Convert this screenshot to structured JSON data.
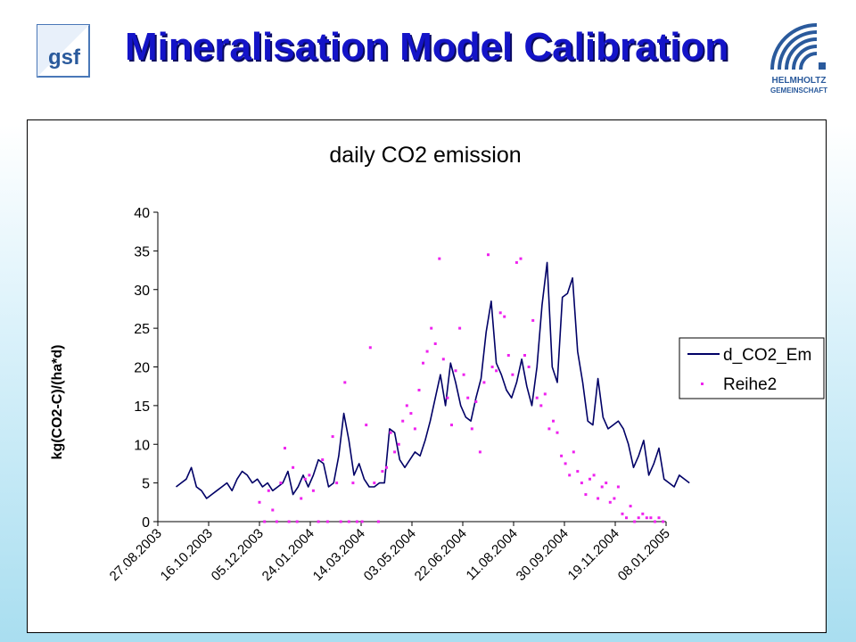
{
  "header": {
    "title": "Mineralisation Model Calibration",
    "logo_left_text": "gsf",
    "logo_right_line1": "HELMHOLTZ",
    "logo_right_line2": "GEMEINSCHAFT"
  },
  "colors": {
    "title": "#1414c8",
    "line_series": "#000066",
    "scatter_series": "#ee22ee",
    "logo_blue": "#2a5a9c"
  },
  "chart_data": {
    "type": "line",
    "title": "daily CO2 emission",
    "xlabel": "",
    "ylabel": "kg(CO2-C)/(ha*d)",
    "ylim": [
      0,
      40
    ],
    "yticks": [
      0,
      5,
      10,
      15,
      20,
      25,
      30,
      35,
      40
    ],
    "xlim": [
      "2003-08-27",
      "2005-01-08"
    ],
    "xticks": [
      "27.08.2003",
      "16.10.2003",
      "05.12.2003",
      "24.01.2004",
      "14.03.2004",
      "03.05.2004",
      "22.06.2004",
      "11.08.2004",
      "30.09.2004",
      "19.11.2004",
      "08.01.2005"
    ],
    "grid": false,
    "legend_position": "right",
    "series": [
      {
        "name": "d_CO2_Em",
        "style": "line",
        "x": [
          "2003-09-14",
          "2003-09-19",
          "2003-09-24",
          "2003-09-29",
          "2003-10-04",
          "2003-10-09",
          "2003-10-14",
          "2003-10-19",
          "2003-10-24",
          "2003-10-29",
          "2003-11-03",
          "2003-11-08",
          "2003-11-13",
          "2003-11-18",
          "2003-11-23",
          "2003-11-28",
          "2003-12-03",
          "2003-12-08",
          "2003-12-13",
          "2003-12-18",
          "2003-12-23",
          "2003-12-28",
          "2004-01-02",
          "2004-01-07",
          "2004-01-12",
          "2004-01-17",
          "2004-01-22",
          "2004-01-27",
          "2004-02-01",
          "2004-02-06",
          "2004-02-11",
          "2004-02-16",
          "2004-02-21",
          "2004-02-26",
          "2004-03-02",
          "2004-03-07",
          "2004-03-12",
          "2004-03-17",
          "2004-03-22",
          "2004-03-27",
          "2004-04-01",
          "2004-04-06",
          "2004-04-11",
          "2004-04-16",
          "2004-04-21",
          "2004-04-26",
          "2004-05-01",
          "2004-05-06",
          "2004-05-11",
          "2004-05-16",
          "2004-05-21",
          "2004-05-26",
          "2004-05-31",
          "2004-06-05",
          "2004-06-10",
          "2004-06-15",
          "2004-06-20",
          "2004-06-25",
          "2004-06-30",
          "2004-07-05",
          "2004-07-10",
          "2004-07-15",
          "2004-07-20",
          "2004-07-25",
          "2004-07-30",
          "2004-08-04",
          "2004-08-09",
          "2004-08-14",
          "2004-08-19",
          "2004-08-24",
          "2004-08-29",
          "2004-09-03",
          "2004-09-08",
          "2004-09-13",
          "2004-09-18",
          "2004-09-23",
          "2004-09-28",
          "2004-10-03",
          "2004-10-08",
          "2004-10-13",
          "2004-10-18",
          "2004-10-23",
          "2004-10-28",
          "2004-11-02",
          "2004-11-07",
          "2004-11-12",
          "2004-11-17",
          "2004-11-22",
          "2004-11-27",
          "2004-12-02",
          "2004-12-07",
          "2004-12-12",
          "2004-12-17",
          "2004-12-22",
          "2004-12-27",
          "2005-01-01",
          "2005-01-06",
          "2005-01-11",
          "2005-01-16",
          "2005-01-21",
          "2005-01-26",
          "2005-01-31"
        ],
        "y": [
          4.5,
          5.0,
          5.5,
          7.0,
          4.5,
          4.0,
          3.0,
          3.5,
          4.0,
          4.5,
          5.0,
          4.0,
          5.5,
          6.5,
          6.0,
          5.0,
          5.5,
          4.5,
          5.0,
          4.0,
          4.5,
          5.0,
          6.5,
          3.5,
          4.5,
          6.0,
          4.5,
          6.0,
          8.0,
          7.5,
          4.5,
          5.0,
          8.5,
          14.0,
          10.5,
          6.0,
          7.5,
          5.5,
          4.5,
          4.5,
          5.0,
          5.0,
          12.0,
          11.5,
          8.0,
          7.0,
          8.0,
          9.0,
          8.5,
          10.5,
          13.0,
          16.0,
          19.0,
          15.0,
          20.5,
          18.0,
          15.0,
          13.5,
          13.0,
          16.0,
          18.5,
          24.5,
          28.5,
          20.5,
          19.0,
          17.0,
          16.0,
          18.0,
          21.0,
          17.5,
          15.0,
          20.0,
          28.0,
          33.5,
          20.0,
          18.0,
          29.0,
          29.5,
          31.5,
          22.0,
          18.0,
          13.0,
          12.5,
          18.5,
          13.5,
          12.0,
          12.5,
          13.0,
          12.0,
          10.0,
          7.0,
          8.5,
          10.5,
          6.0,
          7.5,
          9.5,
          5.5,
          5.0,
          4.5,
          6.0,
          5.5,
          5.0
        ]
      },
      {
        "name": "Reihe2",
        "style": "scatter",
        "x": [
          "2003-12-05",
          "2003-12-10",
          "2003-12-14",
          "2003-12-18",
          "2003-12-22",
          "2003-12-26",
          "2003-12-30",
          "2004-01-03",
          "2004-01-07",
          "2004-01-11",
          "2004-01-15",
          "2004-01-19",
          "2004-01-23",
          "2004-01-27",
          "2004-02-01",
          "2004-02-05",
          "2004-02-10",
          "2004-02-15",
          "2004-02-19",
          "2004-02-23",
          "2004-02-27",
          "2004-03-02",
          "2004-03-06",
          "2004-03-10",
          "2004-03-15",
          "2004-03-19",
          "2004-03-23",
          "2004-03-27",
          "2004-03-31",
          "2004-04-04",
          "2004-04-08",
          "2004-04-12",
          "2004-04-16",
          "2004-04-20",
          "2004-04-24",
          "2004-04-28",
          "2004-05-02",
          "2004-05-06",
          "2004-05-10",
          "2004-05-14",
          "2004-05-18",
          "2004-05-22",
          "2004-05-26",
          "2004-05-30",
          "2004-06-03",
          "2004-06-07",
          "2004-06-11",
          "2004-06-15",
          "2004-06-19",
          "2004-06-23",
          "2004-06-27",
          "2004-07-01",
          "2004-07-05",
          "2004-07-09",
          "2004-07-13",
          "2004-07-17",
          "2004-07-21",
          "2004-07-25",
          "2004-07-29",
          "2004-08-02",
          "2004-08-06",
          "2004-08-10",
          "2004-08-14",
          "2004-08-18",
          "2004-08-22",
          "2004-08-26",
          "2004-08-30",
          "2004-09-03",
          "2004-09-07",
          "2004-09-11",
          "2004-09-15",
          "2004-09-19",
          "2004-09-23",
          "2004-09-27",
          "2004-10-01",
          "2004-10-05",
          "2004-10-09",
          "2004-10-13",
          "2004-10-17",
          "2004-10-21",
          "2004-10-25",
          "2004-10-29",
          "2004-11-02",
          "2004-11-06",
          "2004-11-10",
          "2004-11-14",
          "2004-11-18",
          "2004-11-22",
          "2004-11-26",
          "2004-11-30",
          "2004-12-04",
          "2004-12-08",
          "2004-12-12",
          "2004-12-16",
          "2004-12-20",
          "2004-12-24",
          "2004-12-28",
          "2005-01-01",
          "2005-01-05"
        ],
        "y": [
          2.5,
          0.0,
          4.0,
          1.5,
          0.0,
          5.0,
          9.5,
          0.0,
          7.0,
          0.0,
          3.0,
          5.5,
          6.0,
          4.0,
          0.0,
          8.0,
          0.0,
          11.0,
          5.0,
          0.0,
          18.0,
          0.0,
          5.0,
          0.0,
          0.0,
          12.5,
          22.5,
          5.0,
          0.0,
          6.5,
          7.0,
          11.5,
          9.0,
          10.0,
          13.0,
          15.0,
          14.0,
          12.0,
          17.0,
          20.5,
          22.0,
          25.0,
          23.0,
          34.0,
          21.0,
          16.0,
          12.5,
          19.5,
          25.0,
          19.0,
          16.0,
          12.0,
          15.5,
          9.0,
          18.0,
          34.5,
          20.0,
          19.5,
          27.0,
          26.5,
          21.5,
          19.0,
          33.5,
          34.0,
          21.5,
          20.0,
          26.0,
          16.0,
          15.0,
          16.5,
          12.0,
          13.0,
          11.5,
          8.5,
          7.5,
          6.0,
          9.0,
          6.5,
          5.0,
          3.5,
          5.5,
          6.0,
          3.0,
          4.5,
          5.0,
          2.5,
          3.0,
          4.5,
          1.0,
          0.5,
          2.0,
          0.0,
          0.5,
          1.0,
          0.5,
          0.5,
          0.0,
          0.5,
          0.0
        ]
      }
    ]
  }
}
